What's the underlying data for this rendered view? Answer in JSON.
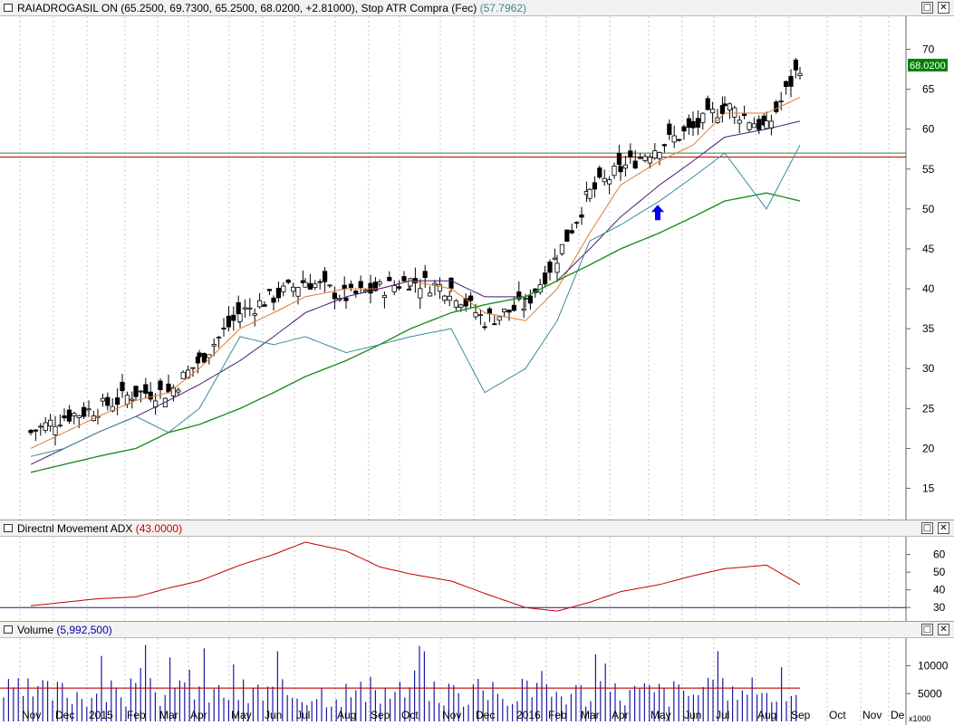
{
  "main_pane": {
    "title": "RAIADROGASIL ON (65.2500, 69.7300, 65.2500, 68.0200, +2.81000), Stop ATR Compra (Fec)",
    "indicator_value": "(57.7962)",
    "price_label": "68.0200",
    "y_ticks": [
      "70",
      "65",
      "60",
      "55",
      "50",
      "45",
      "40",
      "35",
      "30",
      "25",
      "20",
      "15"
    ]
  },
  "adx_pane": {
    "title": "Directnl Movement ADX",
    "value": "(43.0000)",
    "y_ticks": [
      "60",
      "50",
      "40",
      "30"
    ]
  },
  "volume_pane": {
    "title": "Volume",
    "value": "(5,992,500)",
    "y_ticks": [
      "10000",
      "5000"
    ],
    "unit": "x1000"
  },
  "x_axis": [
    "Nov",
    "Dec",
    "2015",
    "Feb",
    "Mar",
    "Apr",
    "May",
    "Jun",
    "Jul",
    "Aug",
    "Sep",
    "Oct",
    "Nov",
    "Dec",
    "2016",
    "Feb",
    "Mar",
    "Apr",
    "May",
    "Jun",
    "Jul",
    "Aug",
    "Sep",
    "Oct",
    "Nov",
    "De"
  ],
  "window_buttons": {
    "restore": "□",
    "close": "✕"
  },
  "colors": {
    "sma_short": "#e07a30",
    "sma_mid": "#4b1a6e",
    "sma_long": "#1f8f1f",
    "stop_atr": "#3a8a9a",
    "adx": "#c00000",
    "support_green": "#2d8a2d",
    "resistance_red": "#c00000",
    "volume_bar": "#1a1aa0",
    "volume_avg": "#c00000",
    "arrow": "#0000ee",
    "price_label_bg": "#008000"
  },
  "chart_data": {
    "type": "candlestick",
    "x": [
      "Nov",
      "Dec",
      "2015",
      "Feb",
      "Mar",
      "Apr",
      "May",
      "Jun",
      "Jul",
      "Aug",
      "Sep",
      "Oct",
      "Nov",
      "Dec",
      "2016",
      "Feb",
      "Mar",
      "Apr",
      "May",
      "Jun",
      "Jul",
      "Aug",
      "Sep"
    ],
    "close": [
      22,
      24,
      25,
      27,
      27,
      31,
      37,
      39,
      41,
      39,
      40,
      41,
      40,
      36,
      38,
      44,
      52,
      55,
      58,
      60,
      63,
      60,
      68.02
    ],
    "series": [
      {
        "values": [
          20,
          22,
          24,
          26,
          27,
          30,
          35,
          37,
          39,
          40,
          40,
          41,
          40,
          37,
          36,
          40,
          47,
          53,
          56,
          58,
          62,
          62,
          64
        ]
      },
      {
        "values": [
          18,
          20,
          22,
          24,
          26,
          28,
          31,
          34,
          37,
          39,
          40,
          41,
          41,
          39,
          39,
          41,
          45,
          49,
          53,
          56,
          59,
          60,
          61
        ]
      },
      {
        "values": [
          17,
          18,
          19,
          20,
          22,
          23,
          25,
          27,
          29,
          31,
          33,
          35,
          37,
          38,
          39,
          41,
          43,
          45,
          47,
          49,
          51,
          52,
          51
        ]
      },
      {
        "values": [
          19,
          20,
          22,
          24,
          22,
          25,
          34,
          33,
          34,
          32,
          33,
          34,
          35,
          27,
          30,
          36,
          46,
          48,
          51,
          54,
          57,
          50,
          58
        ]
      }
    ],
    "horizontal_lines": [
      57,
      56.5
    ],
    "ylim": [
      12,
      73
    ],
    "adx": {
      "values": [
        31,
        33,
        35,
        36,
        41,
        45,
        54,
        60,
        67,
        62,
        53,
        49,
        45,
        38,
        30,
        28,
        33,
        39,
        43,
        48,
        52,
        54,
        43
      ],
      "ylim": [
        25,
        68
      ]
    },
    "volume": {
      "average": 5992,
      "ylim": [
        0,
        14000
      ]
    }
  }
}
